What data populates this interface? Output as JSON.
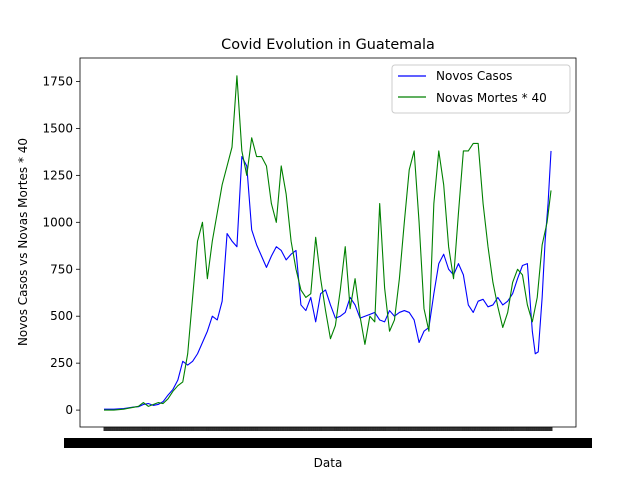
{
  "chart_data": {
    "type": "line",
    "title": "Covid Evolution in Guatemala",
    "xlabel": "Data",
    "ylabel": "Novos Casos vs Novas Mortes * 40",
    "x_tick_labels_note": "",
    "ylim": [
      -90,
      1875
    ],
    "yticks": [
      0,
      250,
      500,
      750,
      1000,
      1250,
      1500,
      1750
    ],
    "grid": false,
    "legend_position": "top-right",
    "x_start": 0,
    "x_end": 455,
    "series": [
      {
        "name": "Novos Casos",
        "color": "#0000ff",
        "points": [
          [
            0,
            5
          ],
          [
            10,
            5
          ],
          [
            20,
            8
          ],
          [
            25,
            12
          ],
          [
            30,
            16
          ],
          [
            35,
            18
          ],
          [
            40,
            30
          ],
          [
            45,
            35
          ],
          [
            50,
            25
          ],
          [
            55,
            30
          ],
          [
            60,
            45
          ],
          [
            65,
            80
          ],
          [
            70,
            110
          ],
          [
            75,
            160
          ],
          [
            80,
            260
          ],
          [
            85,
            240
          ],
          [
            90,
            260
          ],
          [
            95,
            300
          ],
          [
            100,
            360
          ],
          [
            105,
            420
          ],
          [
            110,
            500
          ],
          [
            115,
            480
          ],
          [
            120,
            580
          ],
          [
            125,
            940
          ],
          [
            130,
            900
          ],
          [
            135,
            870
          ],
          [
            140,
            1350
          ],
          [
            145,
            1300
          ],
          [
            150,
            960
          ],
          [
            155,
            880
          ],
          [
            160,
            820
          ],
          [
            165,
            760
          ],
          [
            170,
            820
          ],
          [
            175,
            870
          ],
          [
            180,
            850
          ],
          [
            185,
            800
          ],
          [
            190,
            830
          ],
          [
            195,
            850
          ],
          [
            200,
            560
          ],
          [
            205,
            530
          ],
          [
            210,
            600
          ],
          [
            215,
            470
          ],
          [
            220,
            620
          ],
          [
            225,
            640
          ],
          [
            230,
            560
          ],
          [
            235,
            490
          ],
          [
            240,
            500
          ],
          [
            245,
            520
          ],
          [
            250,
            600
          ],
          [
            255,
            560
          ],
          [
            260,
            490
          ],
          [
            265,
            500
          ],
          [
            270,
            510
          ],
          [
            275,
            520
          ],
          [
            280,
            480
          ],
          [
            285,
            470
          ],
          [
            290,
            530
          ],
          [
            295,
            500
          ],
          [
            300,
            520
          ],
          [
            305,
            530
          ],
          [
            310,
            520
          ],
          [
            315,
            480
          ],
          [
            320,
            360
          ],
          [
            325,
            420
          ],
          [
            330,
            440
          ],
          [
            335,
            620
          ],
          [
            340,
            780
          ],
          [
            345,
            830
          ],
          [
            350,
            750
          ],
          [
            355,
            720
          ],
          [
            360,
            780
          ],
          [
            365,
            720
          ],
          [
            370,
            560
          ],
          [
            375,
            520
          ],
          [
            380,
            580
          ],
          [
            385,
            590
          ],
          [
            390,
            550
          ],
          [
            395,
            560
          ],
          [
            400,
            600
          ],
          [
            405,
            560
          ],
          [
            410,
            580
          ],
          [
            415,
            620
          ],
          [
            420,
            700
          ],
          [
            425,
            770
          ],
          [
            430,
            780
          ],
          [
            435,
            420
          ],
          [
            438,
            300
          ],
          [
            441,
            310
          ],
          [
            445,
            600
          ],
          [
            448,
            900
          ],
          [
            451,
            1100
          ],
          [
            454,
            1380
          ]
        ]
      },
      {
        "name": "Novas Mortes * 40",
        "color": "#008000",
        "points": [
          [
            0,
            0
          ],
          [
            10,
            0
          ],
          [
            20,
            5
          ],
          [
            25,
            10
          ],
          [
            30,
            15
          ],
          [
            35,
            20
          ],
          [
            40,
            40
          ],
          [
            45,
            20
          ],
          [
            50,
            30
          ],
          [
            55,
            40
          ],
          [
            60,
            35
          ],
          [
            65,
            60
          ],
          [
            70,
            100
          ],
          [
            75,
            130
          ],
          [
            80,
            150
          ],
          [
            85,
            300
          ],
          [
            90,
            600
          ],
          [
            95,
            900
          ],
          [
            100,
            1000
          ],
          [
            105,
            700
          ],
          [
            110,
            900
          ],
          [
            115,
            1050
          ],
          [
            120,
            1200
          ],
          [
            125,
            1300
          ],
          [
            130,
            1400
          ],
          [
            135,
            1780
          ],
          [
            140,
            1380
          ],
          [
            145,
            1250
          ],
          [
            150,
            1450
          ],
          [
            155,
            1350
          ],
          [
            160,
            1350
          ],
          [
            165,
            1300
          ],
          [
            170,
            1100
          ],
          [
            175,
            1000
          ],
          [
            180,
            1300
          ],
          [
            185,
            1150
          ],
          [
            190,
            900
          ],
          [
            195,
            750
          ],
          [
            200,
            640
          ],
          [
            205,
            600
          ],
          [
            210,
            620
          ],
          [
            215,
            920
          ],
          [
            220,
            700
          ],
          [
            225,
            530
          ],
          [
            230,
            380
          ],
          [
            235,
            450
          ],
          [
            240,
            640
          ],
          [
            245,
            870
          ],
          [
            250,
            540
          ],
          [
            255,
            700
          ],
          [
            260,
            500
          ],
          [
            265,
            350
          ],
          [
            270,
            500
          ],
          [
            275,
            470
          ],
          [
            280,
            1100
          ],
          [
            285,
            650
          ],
          [
            290,
            420
          ],
          [
            295,
            480
          ],
          [
            300,
            700
          ],
          [
            305,
            1000
          ],
          [
            310,
            1280
          ],
          [
            315,
            1380
          ],
          [
            320,
            1000
          ],
          [
            325,
            540
          ],
          [
            330,
            420
          ],
          [
            335,
            1100
          ],
          [
            340,
            1380
          ],
          [
            345,
            1200
          ],
          [
            350,
            870
          ],
          [
            355,
            700
          ],
          [
            360,
            1050
          ],
          [
            365,
            1380
          ],
          [
            370,
            1380
          ],
          [
            375,
            1420
          ],
          [
            380,
            1420
          ],
          [
            385,
            1100
          ],
          [
            390,
            870
          ],
          [
            395,
            680
          ],
          [
            400,
            550
          ],
          [
            405,
            440
          ],
          [
            410,
            520
          ],
          [
            415,
            680
          ],
          [
            420,
            750
          ],
          [
            425,
            720
          ],
          [
            430,
            560
          ],
          [
            435,
            470
          ],
          [
            440,
            600
          ],
          [
            445,
            880
          ],
          [
            450,
            1000
          ],
          [
            454,
            1170
          ]
        ]
      }
    ]
  }
}
